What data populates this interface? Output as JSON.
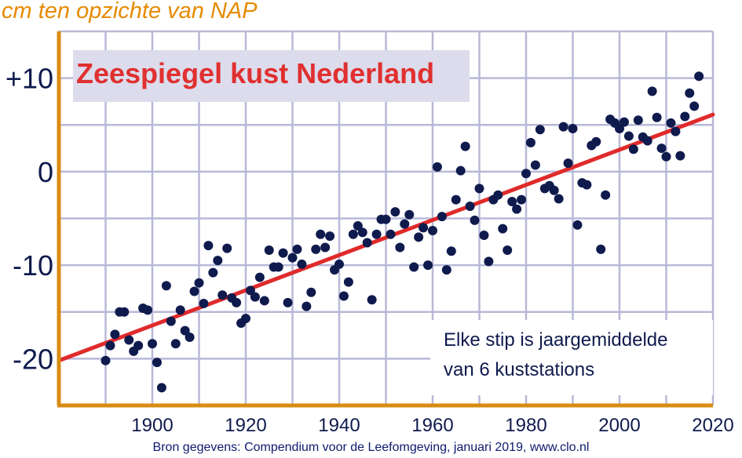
{
  "chart_data": {
    "type": "scatter",
    "title": "Zeespiegel kust Nederland",
    "unit_label": "cm ten opzichte van NAP",
    "annotation": [
      "Elke stip is jaargemiddelde",
      "van 6 kuststations"
    ],
    "source": "Bron gegevens: Compendium voor de Leefomgeving, januari 2019, www.clo.nl",
    "xlim": [
      1880,
      2020
    ],
    "ylim": [
      -25,
      15
    ],
    "x_ticks": [
      1900,
      1920,
      1940,
      1960,
      1980,
      2000,
      2020
    ],
    "y_ticks": [
      {
        "value": 10,
        "label": "+10"
      },
      {
        "value": 0,
        "label": "0"
      },
      {
        "value": -10,
        "label": "-10"
      },
      {
        "value": -20,
        "label": "-20"
      }
    ],
    "grid": true,
    "trend": {
      "x": [
        1880,
        2020
      ],
      "y": [
        -20.2,
        6.1
      ]
    },
    "colors": {
      "points": "#0f1a4d",
      "trend": "#e02a2a",
      "grid": "#b8b8d8",
      "axes": "#d98c14",
      "title": "#e03030",
      "unit_label": "#e68a00"
    },
    "series": [
      {
        "x": [
          1890,
          1891,
          1892,
          1893,
          1894,
          1895,
          1896,
          1897,
          1898,
          1899,
          1900,
          1901,
          1902,
          1903,
          1904,
          1905,
          1906,
          1907,
          1908,
          1909,
          1910,
          1911,
          1912,
          1913,
          1914,
          1915,
          1916,
          1917,
          1918,
          1919,
          1920,
          1921,
          1922,
          1923,
          1924,
          1925,
          1926,
          1927,
          1928,
          1929,
          1930,
          1931,
          1932,
          1933,
          1934,
          1935,
          1936,
          1937,
          1938,
          1939,
          1940,
          1941,
          1942,
          1943,
          1944,
          1945,
          1946,
          1947,
          1948,
          1949,
          1950,
          1951,
          1952,
          1953,
          1954,
          1955,
          1956,
          1957,
          1958,
          1959,
          1960,
          1961,
          1962,
          1963,
          1964,
          1965,
          1966,
          1967,
          1968,
          1969,
          1970,
          1971,
          1972,
          1973,
          1974,
          1975,
          1976,
          1977,
          1978,
          1979,
          1980,
          1981,
          1982,
          1983,
          1984,
          1985,
          1986,
          1987,
          1988,
          1989,
          1990,
          1991,
          1992,
          1993,
          1994,
          1995,
          1996,
          1997,
          1998,
          1999,
          2000,
          2001,
          2002,
          2003,
          2004,
          2005,
          2006,
          2007,
          2008,
          2009,
          2010,
          2011,
          2012,
          2013,
          2014,
          2015,
          2016,
          2017
        ],
        "y": [
          -20.2,
          -18.6,
          -17.4,
          -15.0,
          -15.0,
          -18.0,
          -19.2,
          -18.6,
          -14.6,
          -14.8,
          -18.4,
          -20.4,
          -23.1,
          -12.2,
          -16.0,
          -18.4,
          -14.8,
          -17.0,
          -17.7,
          -12.8,
          -11.9,
          -14.1,
          -7.9,
          -10.8,
          -9.5,
          -13.2,
          -8.2,
          -13.5,
          -14.0,
          -16.2,
          -15.7,
          -12.7,
          -13.4,
          -11.3,
          -13.8,
          -8.4,
          -10.2,
          -10.2,
          -8.7,
          -14.0,
          -9.2,
          -8.3,
          -9.9,
          -14.4,
          -12.9,
          -8.3,
          -6.7,
          -8.1,
          -6.9,
          -10.5,
          -9.9,
          -13.3,
          -11.8,
          -6.7,
          -5.8,
          -6.5,
          -7.6,
          -13.7,
          -6.7,
          -5.1,
          -5.1,
          -6.7,
          -4.3,
          -8.1,
          -5.6,
          -4.6,
          -10.2,
          -7.0,
          -6.0,
          -10.0,
          -6.3,
          0.5,
          -4.8,
          -10.5,
          -8.5,
          -3.0,
          0.1,
          2.7,
          -3.7,
          -5.2,
          -1.8,
          -6.8,
          -9.6,
          -3.0,
          -2.5,
          -6.1,
          -8.4,
          -3.2,
          -4.0,
          -3.0,
          -0.2,
          3.1,
          0.7,
          4.5,
          -1.8,
          -1.5,
          -2.0,
          -2.9,
          4.8,
          0.9,
          4.6,
          -5.7,
          -1.2,
          -1.4,
          2.8,
          3.2,
          -8.3,
          -2.5,
          5.6,
          5.2,
          4.6,
          5.3,
          3.8,
          2.4,
          5.5,
          3.7,
          3.3,
          8.6,
          5.8,
          2.5,
          1.6,
          5.2,
          4.3,
          1.7,
          5.9,
          8.4,
          7.0,
          10.2
        ]
      }
    ]
  }
}
